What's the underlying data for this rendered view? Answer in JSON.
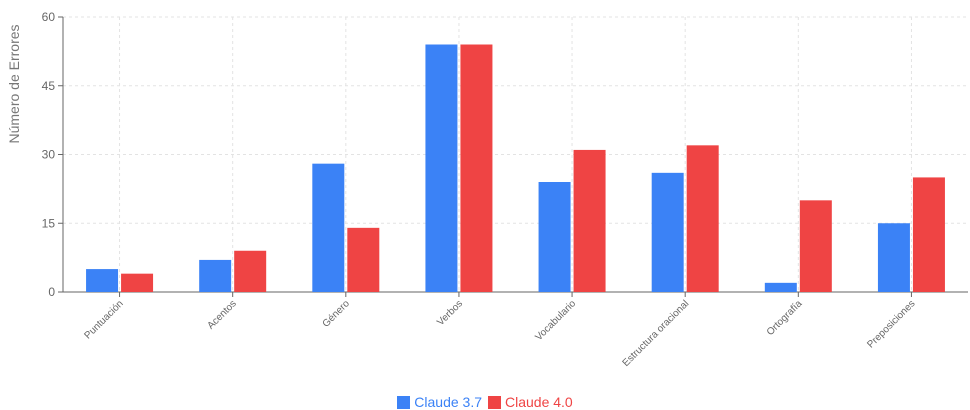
{
  "chart_data": {
    "type": "bar",
    "title": "",
    "xlabel": "",
    "ylabel": "Número de Errores",
    "ylim": [
      0,
      60
    ],
    "yticks": [
      0,
      15,
      30,
      45,
      60
    ],
    "grid": true,
    "legend_position": "bottom-center",
    "categories": [
      "Puntuación",
      "Acentos",
      "Género",
      "Verbos",
      "Vocabulario",
      "Estructura oracional",
      "Ortografía",
      "Preposiciones"
    ],
    "series": [
      {
        "name": "Claude 3.7",
        "color": "#3b82f6",
        "values": [
          5,
          7,
          28,
          54,
          24,
          26,
          2,
          15
        ]
      },
      {
        "name": "Claude 4.0",
        "color": "#ef4444",
        "values": [
          4,
          9,
          14,
          54,
          31,
          32,
          20,
          25
        ]
      }
    ]
  }
}
